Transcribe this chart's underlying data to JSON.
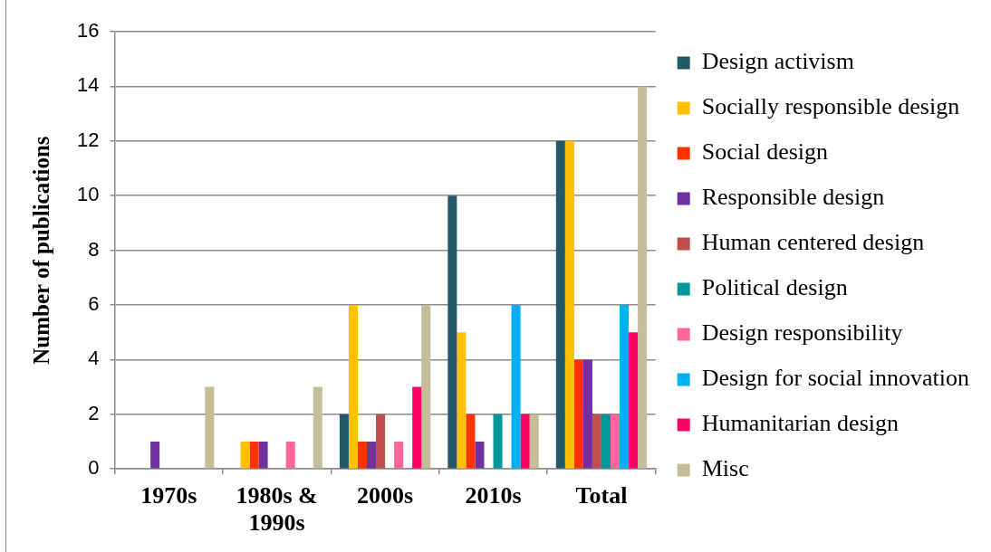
{
  "chart_data": {
    "type": "bar",
    "ylabel": "Number of publications",
    "categories": [
      "1970s",
      "1980s & 1990s",
      "2000s",
      "2010s",
      "Total"
    ],
    "series": [
      {
        "name": "Design activism",
        "color": "#215968",
        "values": [
          0,
          0,
          2,
          10,
          12
        ]
      },
      {
        "name": "Socially responsible design",
        "color": "#ffc000",
        "values": [
          0,
          1,
          6,
          5,
          12
        ]
      },
      {
        "name": "Social design",
        "color": "#ff3300",
        "values": [
          0,
          1,
          1,
          2,
          4
        ]
      },
      {
        "name": "Responsible design",
        "color": "#7030a0",
        "values": [
          1,
          1,
          1,
          1,
          4
        ]
      },
      {
        "name": "Human centered design",
        "color": "#c0504d",
        "values": [
          0,
          0,
          2,
          0,
          2
        ]
      },
      {
        "name": "Political design",
        "color": "#009999",
        "values": [
          0,
          0,
          0,
          2,
          2
        ]
      },
      {
        "name": "Design responsibility",
        "color": "#ff6699",
        "values": [
          0,
          1,
          1,
          0,
          2
        ]
      },
      {
        "name": "Design for social innovation",
        "color": "#00b0f0",
        "values": [
          0,
          0,
          0,
          6,
          6
        ]
      },
      {
        "name": "Humanitarian design",
        "color": "#ff0066",
        "values": [
          0,
          0,
          3,
          2,
          5
        ]
      },
      {
        "name": "Misc",
        "color": "#c4bd97",
        "values": [
          3,
          3,
          6,
          2,
          14
        ]
      }
    ],
    "ylim": [
      0,
      16
    ],
    "yticks": [
      0,
      2,
      4,
      6,
      8,
      10,
      12,
      14,
      16
    ],
    "grid": "y",
    "legend": "right"
  }
}
